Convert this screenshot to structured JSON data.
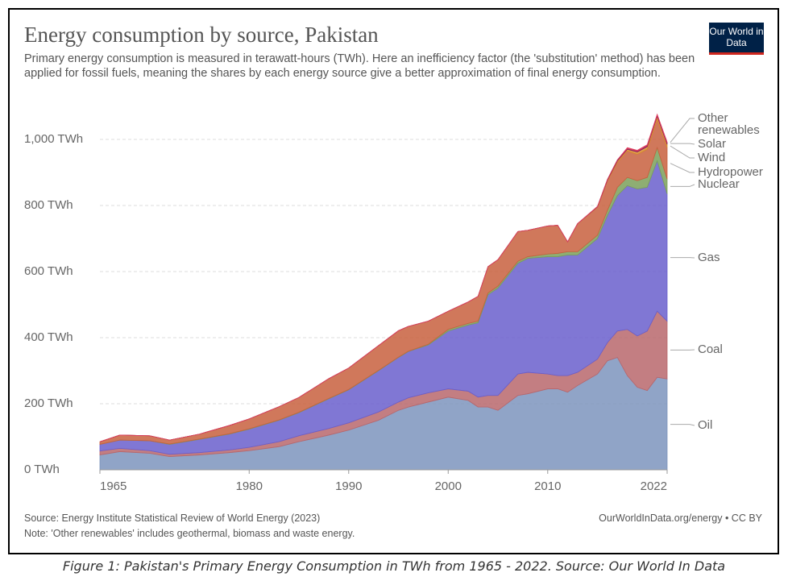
{
  "title": "Energy consumption by source, Pakistan",
  "subtitle": "Primary energy consumption is measured in terawatt-hours (TWh). Here an inefficiency factor (the 'substitution' method) has been applied for fossil fuels, meaning the shares by each energy source give a better approximation of final energy consumption.",
  "logo": "Our World in Data",
  "source": "Source: Energy Institute Statistical Review of World Energy (2023)",
  "note": "Note: 'Other renewables' includes geothermal, biomass and waste energy.",
  "url": "OurWorldInData.org/energy • CC BY",
  "caption": "Figure 1: Pakistan's Primary Energy Consumption in TWh from 1965 - 2022. Source: Our World In Data",
  "chart_data": {
    "type": "stacked-area",
    "x": [
      1965,
      1967,
      1970,
      1972,
      1975,
      1978,
      1980,
      1983,
      1985,
      1988,
      1990,
      1993,
      1995,
      1996,
      1998,
      2000,
      2002,
      2003,
      2004,
      2005,
      2007,
      2008,
      2010,
      2011,
      2012,
      2013,
      2015,
      2016,
      2017,
      2018,
      2019,
      2020,
      2021,
      2022
    ],
    "series": [
      {
        "name": "Oil",
        "color": "#7d94bd",
        "label_color": "#4a6fa5",
        "values": [
          45,
          55,
          50,
          40,
          45,
          52,
          58,
          70,
          85,
          105,
          120,
          150,
          180,
          190,
          205,
          220,
          210,
          190,
          190,
          180,
          225,
          230,
          245,
          245,
          235,
          255,
          290,
          330,
          340,
          285,
          250,
          240,
          280,
          275
        ]
      },
      {
        "name": "Coal",
        "color": "#b8676c",
        "label_color": "#a8454f",
        "values": [
          12,
          10,
          8,
          7,
          7,
          8,
          10,
          15,
          18,
          20,
          22,
          25,
          25,
          28,
          28,
          25,
          28,
          30,
          35,
          45,
          65,
          65,
          45,
          40,
          50,
          40,
          45,
          55,
          80,
          140,
          155,
          180,
          200,
          175
        ]
      },
      {
        "name": "Gas",
        "color": "#6a5fcc",
        "label_color": "#5b4fc1",
        "values": [
          20,
          25,
          30,
          30,
          40,
          48,
          55,
          65,
          70,
          90,
          100,
          125,
          135,
          140,
          145,
          175,
          200,
          225,
          305,
          325,
          335,
          345,
          355,
          360,
          365,
          355,
          365,
          385,
          410,
          435,
          445,
          435,
          455,
          385
        ]
      },
      {
        "name": "Nuclear",
        "color": "#7aa05a",
        "label_color": "#4c8a3a",
        "values": [
          0,
          0,
          0,
          1,
          1,
          1,
          1,
          1,
          1,
          1,
          1,
          1,
          1,
          1,
          2,
          5,
          5,
          5,
          5,
          6,
          6,
          5,
          8,
          10,
          10,
          10,
          10,
          15,
          25,
          25,
          25,
          30,
          40,
          45
        ]
      },
      {
        "name": "Hydropower",
        "color": "#c8603e",
        "label_color": "#c0452a",
        "values": [
          8,
          15,
          15,
          12,
          15,
          25,
          30,
          40,
          45,
          60,
          65,
          75,
          80,
          75,
          70,
          55,
          65,
          75,
          80,
          80,
          90,
          80,
          85,
          85,
          30,
          85,
          85,
          90,
          75,
          80,
          80,
          85,
          85,
          95
        ]
      },
      {
        "name": "Wind",
        "color": "#d88c2e",
        "label_color": "#c8841e",
        "values": [
          0,
          0,
          0,
          0,
          0,
          0,
          0,
          0,
          0,
          0,
          0,
          0,
          0,
          0,
          0,
          0,
          0,
          0,
          0,
          0,
          0,
          0,
          0,
          0,
          0,
          0,
          1,
          2,
          5,
          5,
          7,
          8,
          10,
          10
        ]
      },
      {
        "name": "Solar",
        "color": "#8b1b5b",
        "label_color": "#8b1b5b",
        "values": [
          0,
          0,
          0,
          0,
          0,
          0,
          0,
          0,
          0,
          0,
          0,
          0,
          0,
          0,
          0,
          0,
          0,
          0,
          0,
          0,
          0,
          0,
          0,
          0,
          0,
          0,
          1,
          2,
          3,
          3,
          3,
          4,
          4,
          5
        ]
      },
      {
        "name": "Other renewables",
        "color": "#e04060",
        "label_color": "#e04060",
        "values": [
          0,
          0,
          0,
          0,
          0,
          0,
          0,
          0,
          0,
          0,
          0,
          0,
          0,
          0,
          0,
          0,
          0,
          0,
          0,
          0,
          0,
          0,
          0,
          0,
          0,
          0,
          0,
          0,
          0,
          2,
          2,
          2,
          2,
          2
        ]
      }
    ],
    "xlim": [
      1965,
      2022
    ],
    "xticks": [
      1965,
      1980,
      1990,
      2000,
      2010,
      2022
    ],
    "ylim": [
      0,
      1100
    ],
    "yticks": [
      {
        "value": 0,
        "label": "0 TWh"
      },
      {
        "value": 200,
        "label": "200 TWh"
      },
      {
        "value": 400,
        "label": "400 TWh"
      },
      {
        "value": 600,
        "label": "600 TWh"
      },
      {
        "value": 800,
        "label": "800 TWh"
      },
      {
        "value": 1000,
        "label": "1,000 TWh"
      }
    ],
    "grid": true
  }
}
